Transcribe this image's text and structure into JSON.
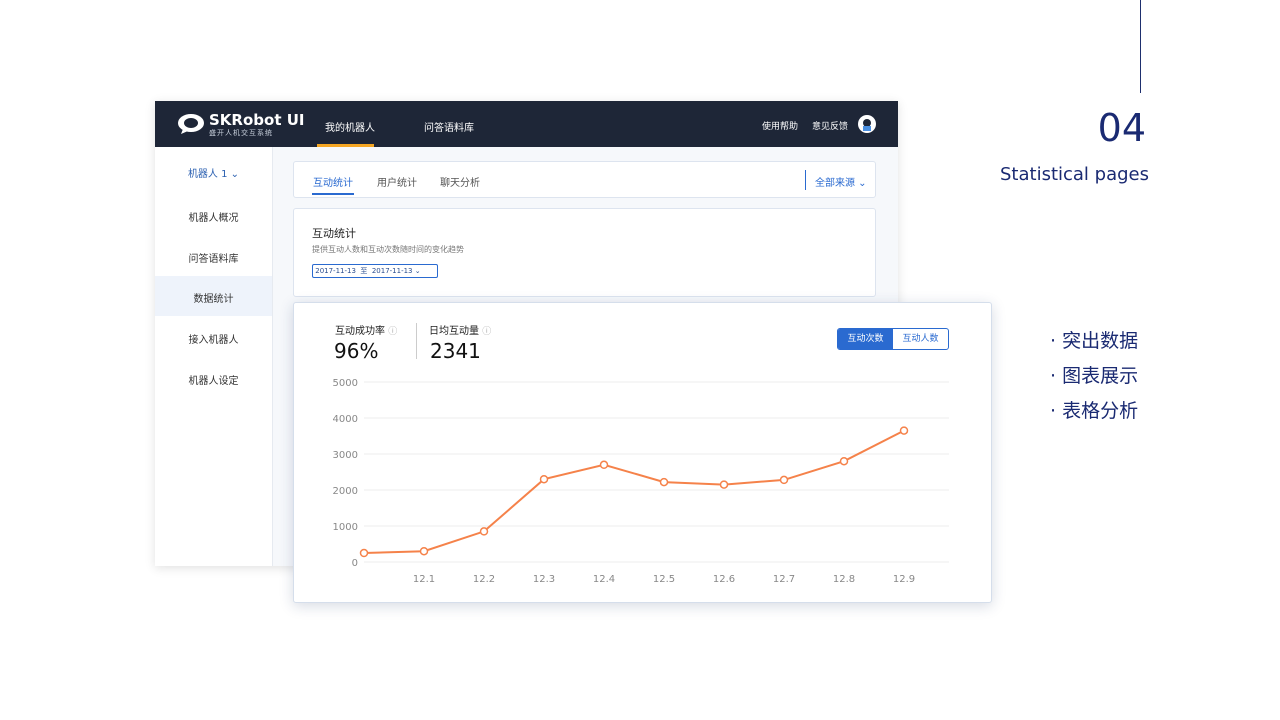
{
  "header": {
    "logo": "SKRobot UI",
    "logo_sub": "盛开人机交互系统",
    "nav": [
      "我的机器人",
      "问答语料库"
    ],
    "right": [
      "使用帮助",
      "意见反馈"
    ]
  },
  "sidebar": {
    "robot": "机器人 1",
    "items": [
      "机器人概况",
      "问答语料库",
      "数据统计",
      "接入机器人",
      "机器人设定"
    ]
  },
  "tabs": {
    "items": [
      "互动统计",
      "用户统计",
      "聊天分析"
    ],
    "source": "全部来源"
  },
  "card": {
    "title": "互动统计",
    "desc": "提供互动人数和互动次数随时间的变化趋势",
    "date_from": "2017-11-13",
    "date_sep": "至",
    "date_to": "2017-11-13"
  },
  "stats": [
    {
      "label": "互动成功率",
      "value": "96%"
    },
    {
      "label": "日均互动量",
      "value": "2341"
    }
  ],
  "toggle": [
    "互动次数",
    "互动人数"
  ],
  "chart_data": {
    "type": "line",
    "categories": [
      null,
      "12.1",
      "12.2",
      "12.3",
      "12.4",
      "12.5",
      "12.6",
      "12.7",
      "12.8",
      "12.9"
    ],
    "values": [
      250,
      300,
      850,
      2300,
      2700,
      2220,
      2150,
      2280,
      2800,
      3650
    ],
    "color": "#f5824a",
    "ylim": [
      0,
      5000
    ],
    "yticks": [
      0,
      1000,
      2000,
      3000,
      4000,
      5000
    ],
    "grid": true
  },
  "side": {
    "number": "04",
    "caption": "Statistical pages",
    "bullets": [
      "突出数据",
      "图表展示",
      "表格分析"
    ]
  }
}
